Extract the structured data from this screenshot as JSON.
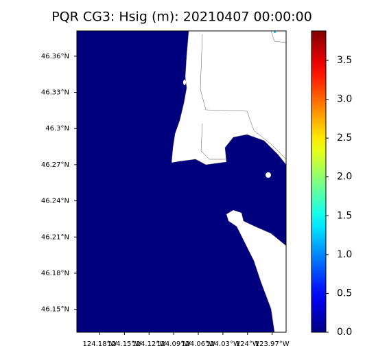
{
  "chart_data": {
    "type": "map",
    "title": "PQR CG3: Hsig (m): 20210407 00:00:00",
    "xlim": [
      -124.208,
      -123.953
    ],
    "ylim": [
      46.131,
      46.381
    ],
    "xticks": [
      {
        "value": -124.18,
        "label": "124.18°W"
      },
      {
        "value": -124.15,
        "label": "124.15°W"
      },
      {
        "value": -124.12,
        "label": "124.12°W"
      },
      {
        "value": -124.09,
        "label": "124.09°W"
      },
      {
        "value": -124.06,
        "label": "124.06°W"
      },
      {
        "value": -124.03,
        "label": "124.03°W"
      },
      {
        "value": -124.0,
        "label": "124°W"
      },
      {
        "value": -123.97,
        "label": "123.97°W"
      }
    ],
    "yticks": [
      {
        "value": 46.15,
        "label": "46.15°N"
      },
      {
        "value": 46.18,
        "label": "46.18°N"
      },
      {
        "value": 46.21,
        "label": "46.21°N"
      },
      {
        "value": 46.24,
        "label": "46.24°N"
      },
      {
        "value": 46.27,
        "label": "46.27°N"
      },
      {
        "value": 46.3,
        "label": "46.3°N"
      },
      {
        "value": 46.33,
        "label": "46.33°N"
      },
      {
        "value": 46.36,
        "label": "46.36°N"
      }
    ],
    "colormap": "jet",
    "clim": [
      0,
      3.88
    ],
    "cticks": [
      {
        "value": 0,
        "label": "0.0"
      },
      {
        "value": 0.5,
        "label": "0.5"
      },
      {
        "value": 1,
        "label": "1.0"
      },
      {
        "value": 1.5,
        "label": "1.5"
      },
      {
        "value": 2,
        "label": "2.0"
      },
      {
        "value": 2.5,
        "label": "2.5"
      },
      {
        "value": 3,
        "label": "3.0"
      },
      {
        "value": 3.5,
        "label": "3.5"
      }
    ]
  }
}
